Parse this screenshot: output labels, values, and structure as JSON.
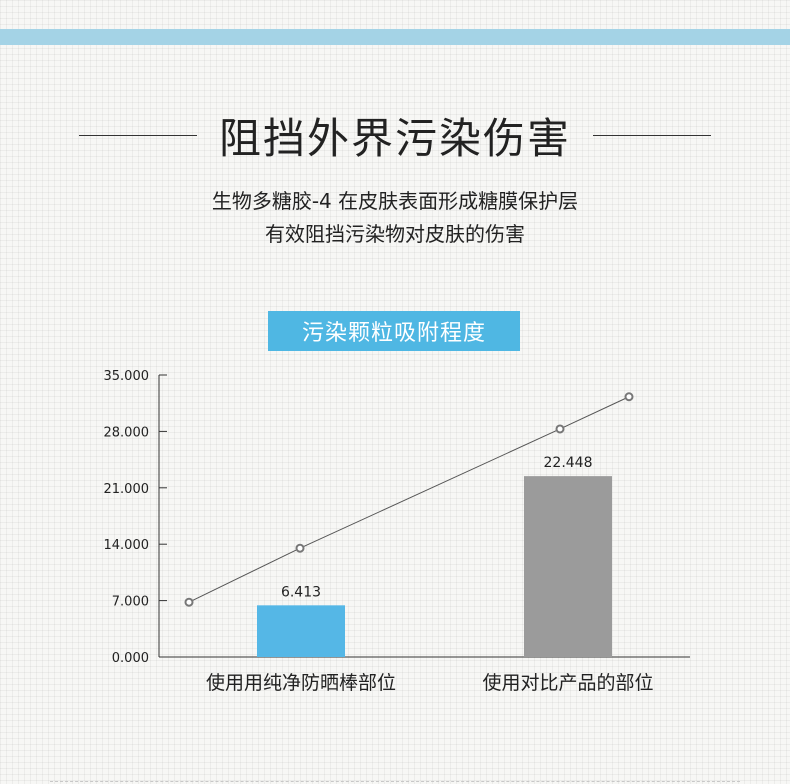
{
  "heading": {
    "title": "阻挡外界污染伤害",
    "line1": "生物多糖胶-4 在皮肤表面形成糖膜保护层",
    "line2": "有效阻挡污染物对皮肤的伤害"
  },
  "colors": {
    "band": "#a4d3e6",
    "accent": "#4fb7e3",
    "bar_own": "#55b7e6",
    "bar_other": "#9b9b9b",
    "line": "#555555"
  },
  "chart_data": {
    "type": "bar",
    "title": "污染颗粒吸附程度",
    "categories": [
      "使用用纯净防晒棒部位",
      "使用对比产品的部位"
    ],
    "values": [
      6.413,
      22.448
    ],
    "value_labels": [
      "6.413",
      "22.448"
    ],
    "yticks": [
      "0.000",
      "7.000",
      "14.000",
      "21.000",
      "28.000",
      "35.000"
    ],
    "ylim": [
      0,
      35
    ],
    "trend_line": {
      "values": [
        6.8,
        13.5,
        28.3,
        32.3
      ]
    },
    "grid": false
  }
}
